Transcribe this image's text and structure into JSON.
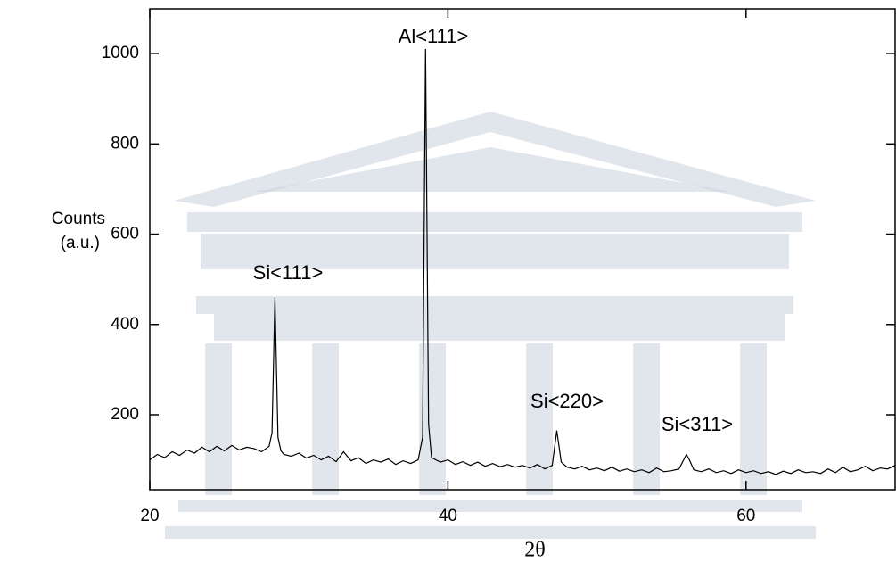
{
  "chart_data": {
    "type": "line",
    "ylabel": [
      "Counts",
      "(a.u.)"
    ],
    "xlabel": "2θ",
    "xlim": [
      20,
      70
    ],
    "ylim": [
      34,
      1099
    ],
    "xticks": [
      20,
      40,
      60
    ],
    "yticks": [
      200,
      400,
      600,
      800,
      1000
    ],
    "annotations": [
      "Al<111>",
      "Si<111>",
      "Si<220>",
      "Si<311>"
    ],
    "series": [
      {
        "color": "#000000",
        "x": [
          20,
          20.5,
          21,
          21.5,
          22,
          22.5,
          23,
          23.5,
          24,
          24.5,
          25,
          25.5,
          26,
          26.5,
          27,
          27.5,
          28,
          28.2,
          28.4,
          28.6,
          28.8,
          29,
          29.5,
          30,
          30.5,
          31,
          31.5,
          32,
          32.5,
          33,
          33.5,
          34,
          34.5,
          35,
          35.5,
          36,
          36.5,
          37,
          37.5,
          38,
          38.3,
          38.5,
          38.7,
          38.9,
          39.5,
          40,
          40.5,
          41,
          41.5,
          42,
          42.5,
          43,
          43.5,
          44,
          44.5,
          45,
          45.5,
          46,
          46.5,
          47,
          47.3,
          47.6,
          48,
          48.5,
          49,
          49.5,
          50,
          50.5,
          51,
          51.5,
          52,
          52.5,
          53,
          53.5,
          54,
          54.5,
          55,
          55.5,
          56,
          56.2,
          56.5,
          57,
          57.5,
          58,
          58.5,
          59,
          59.5,
          60,
          60.5,
          61,
          61.5,
          62,
          62.5,
          63,
          63.5,
          64,
          64.5,
          65,
          65.5,
          66,
          66.5,
          67,
          67.5,
          68,
          68.5,
          69,
          69.5,
          70
        ],
        "values": [
          100,
          112,
          105,
          118,
          110,
          122,
          115,
          128,
          118,
          130,
          120,
          132,
          122,
          128,
          125,
          118,
          130,
          160,
          460,
          150,
          120,
          112,
          108,
          115,
          104,
          110,
          100,
          108,
          96,
          118,
          98,
          105,
          92,
          100,
          95,
          102,
          90,
          98,
          92,
          100,
          150,
          1010,
          180,
          105,
          95,
          100,
          90,
          96,
          88,
          95,
          86,
          92,
          85,
          90,
          84,
          88,
          82,
          90,
          80,
          88,
          165,
          95,
          84,
          80,
          86,
          78,
          82,
          76,
          84,
          75,
          80,
          74,
          78,
          72,
          82,
          74,
          76,
          80,
          112,
          100,
          78,
          74,
          80,
          72,
          76,
          70,
          78,
          72,
          76,
          70,
          74,
          68,
          75,
          70,
          78,
          72,
          74,
          70,
          80,
          72,
          84,
          74,
          78,
          86,
          76,
          82,
          80,
          88
        ]
      }
    ]
  }
}
